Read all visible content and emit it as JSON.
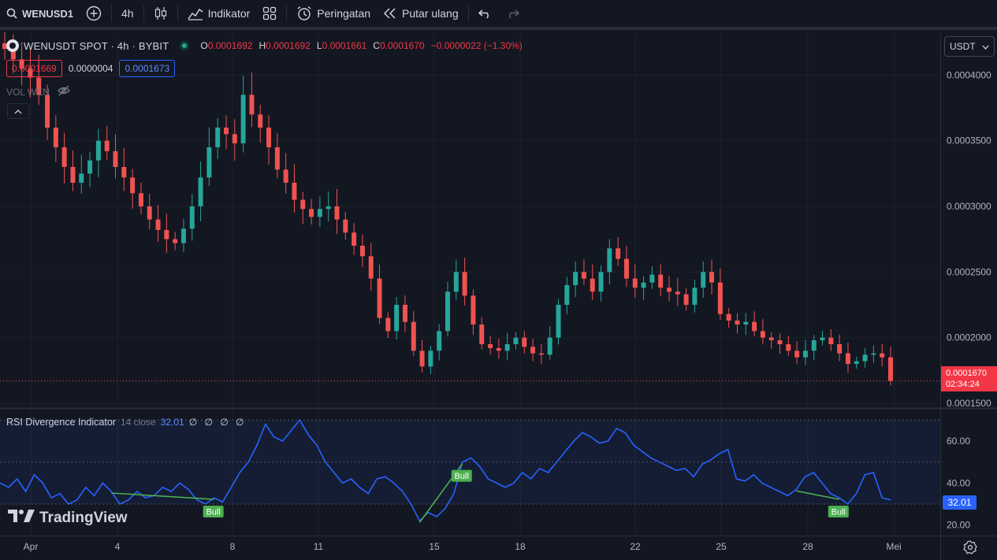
{
  "toolbar": {
    "symbol": "WENUSD1",
    "interval": "4h",
    "indicators_label": "Indikator",
    "alerts_label": "Peringatan",
    "replay_label": "Putar ulang"
  },
  "legend": {
    "title": "WENUSDT SPOT · 4h · BYBIT",
    "open_key": "O",
    "open": "0.0001692",
    "high_key": "H",
    "high": "0.0001692",
    "low_key": "L",
    "low": "0.0001661",
    "close_key": "C",
    "close": "0.0001670",
    "change": "−0.0000022 (−1.30%)"
  },
  "bidask": {
    "bid": "0.0001669",
    "spread": "0.0000004",
    "ask": "0.0001673"
  },
  "volume_label": "VOL  WEN",
  "currency": "USDT",
  "price_tag": {
    "price": "0.0001670",
    "countdown": "02:34:24"
  },
  "rsi": {
    "name": "RSI Divergence Indicator",
    "params": "14 close",
    "value": "32.01",
    "extras": "∅ ∅ ∅ ∅",
    "tag": "32.01",
    "bull_label": "Bull"
  },
  "branding": "TradingView",
  "colors": {
    "up": "#26a69a",
    "down": "#ef5350",
    "rsi": "#2962ff",
    "bull": "#4caf50",
    "background": "#131722"
  },
  "chart_data": [
    {
      "type": "candlestick",
      "title": "WENUSDT SPOT · 4h · BYBIT",
      "x_tick_labels": [
        "Apr",
        "4",
        "8",
        "11",
        "15",
        "18",
        "22",
        "25",
        "28",
        "Mei"
      ],
      "y_tick_labels": [
        "0.0004000",
        "0.0003500",
        "0.0003000",
        "0.0002500",
        "0.0002000",
        "0.0001500"
      ],
      "ylim": [
        0.000147,
        0.000432
      ],
      "last_price": 0.000167,
      "close_series": [
        0.00042,
        0.000412,
        0.000405,
        0.000398,
        0.000385,
        0.00036,
        0.000345,
        0.00033,
        0.000318,
        0.000325,
        0.000335,
        0.00035,
        0.000342,
        0.00033,
        0.000322,
        0.00031,
        0.0003,
        0.00029,
        0.000282,
        0.000275,
        0.000272,
        0.000283,
        0.0003,
        0.000322,
        0.000345,
        0.00036,
        0.000355,
        0.000348,
        0.000385,
        0.00037,
        0.00036,
        0.000345,
        0.000328,
        0.000318,
        0.000305,
        0.000298,
        0.000292,
        0.000298,
        0.0003,
        0.00029,
        0.00028,
        0.00027,
        0.000262,
        0.000245,
        0.000215,
        0.000205,
        0.000225,
        0.000212,
        0.00019,
        0.000178,
        0.00019,
        0.000205,
        0.000235,
        0.00025,
        0.000232,
        0.00021,
        0.000195,
        0.000192,
        0.00019,
        0.000195,
        0.0002,
        0.000193,
        0.000188,
        0.000187,
        0.0002,
        0.000225,
        0.00024,
        0.00025,
        0.000245,
        0.000235,
        0.00025,
        0.000268,
        0.00026,
        0.000245,
        0.000238,
        0.000242,
        0.000248,
        0.000238,
        0.000235,
        0.000233,
        0.000225,
        0.000238,
        0.00025,
        0.000242,
        0.000218,
        0.000213,
        0.00021,
        0.000212,
        0.000205,
        0.0002,
        0.000198,
        0.000195,
        0.00019,
        0.000185,
        0.00019,
        0.000198,
        0.0002,
        0.000195,
        0.000188,
        0.00018,
        0.000182,
        0.000187,
        0.000188,
        0.000185,
        0.000167
      ]
    },
    {
      "type": "line",
      "title": "RSI Divergence Indicator",
      "x_tick_labels": [
        "Apr",
        "4",
        "8",
        "11",
        "15",
        "18",
        "22",
        "25",
        "28",
        "Mei"
      ],
      "y_tick_labels": [
        "60.00",
        "40.00",
        "20.00"
      ],
      "ylim": [
        15,
        75
      ],
      "bands": [
        70,
        50,
        30
      ],
      "series": [
        {
          "values": [
            40,
            38,
            42,
            36,
            44,
            40,
            33,
            35,
            30,
            32,
            38,
            34,
            40,
            36,
            30,
            32,
            36,
            33,
            34,
            38,
            36,
            40,
            37,
            32,
            30,
            33,
            31,
            38,
            45,
            50,
            58,
            68,
            62,
            60,
            65,
            70,
            63,
            58,
            50,
            45,
            40,
            42,
            38,
            35,
            42,
            43,
            40,
            36,
            30,
            22,
            26,
            24,
            28,
            35,
            50,
            52,
            48,
            42,
            40,
            38,
            40,
            45,
            42,
            47,
            45,
            50,
            55,
            60,
            64,
            62,
            59,
            60,
            66,
            64,
            58,
            55,
            52,
            50,
            48,
            46,
            47,
            43,
            49,
            51,
            54,
            56,
            42,
            41,
            44,
            40,
            38,
            36,
            34,
            37,
            43,
            45,
            40,
            35,
            33,
            30,
            35,
            44,
            45,
            33,
            32
          ]
        }
      ],
      "annotations": [
        "Bull",
        "Bull",
        "Bull"
      ]
    }
  ]
}
